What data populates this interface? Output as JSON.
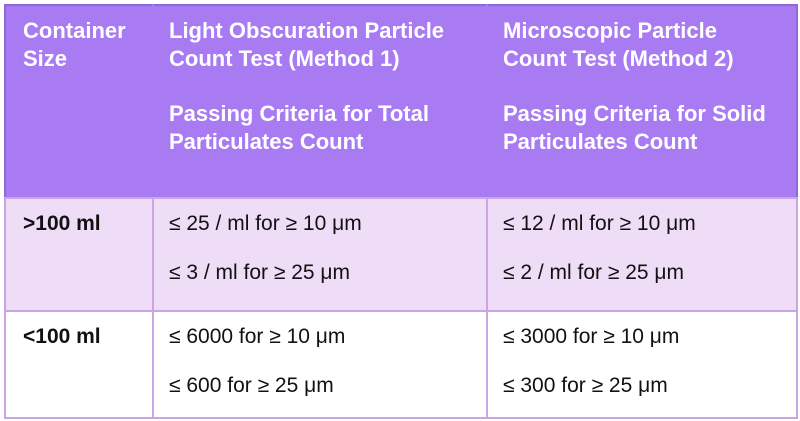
{
  "colors": {
    "header_bg": "#a87bf2",
    "header_text": "#ffffff",
    "header_outer_border": "#9168d6",
    "grid_border": "#caa4e4",
    "row_alt_bg": "#efdcf7",
    "row_bg": "#ffffff",
    "body_text": "#111111"
  },
  "table": {
    "headers": [
      {
        "paragraphs": [
          "Container Size"
        ]
      },
      {
        "paragraphs": [
          "Light Obscuration Particle Count Test (Method 1)",
          "Passing Criteria for Total Particulates Count"
        ]
      },
      {
        "paragraphs": [
          "Microscopic Particle Count Test (Method 2)",
          "Passing Criteria for Solid Particulates Count"
        ]
      }
    ],
    "rows": [
      {
        "container_size": ">100 ml",
        "method1": [
          "≤ 25 / ml for ≥ 10 μm",
          "≤ 3 / ml for ≥ 25 μm"
        ],
        "method2": [
          "≤ 12 / ml for ≥ 10 μm",
          "≤ 2 / ml for ≥ 25 μm"
        ]
      },
      {
        "container_size": "<100 ml",
        "method1": [
          "≤ 6000 for ≥ 10 μm",
          "≤ 600 for ≥ 25 μm"
        ],
        "method2": [
          "≤ 3000 for ≥ 10 μm",
          "≤ 300 for ≥ 25 μm"
        ]
      }
    ]
  }
}
